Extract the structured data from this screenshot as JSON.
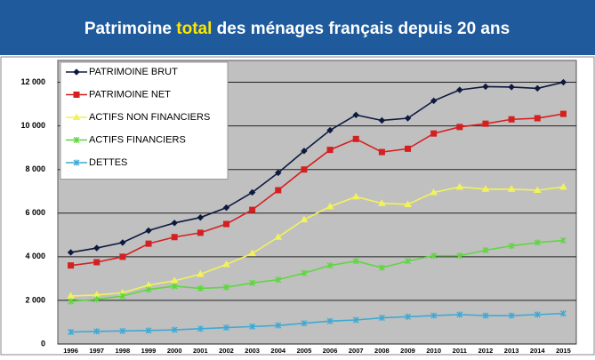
{
  "chart_data": {
    "type": "line",
    "title": [
      "Patrimoine ",
      "total",
      " des ménages français depuis 20 ans"
    ],
    "title_highlight_color": "#ffe600",
    "categories": [
      "1996",
      "1997",
      "1998",
      "1999",
      "2000",
      "2001",
      "2002",
      "2003",
      "2004",
      "2005",
      "2006",
      "2007",
      "2008",
      "2009",
      "2010",
      "2011",
      "2012",
      "2013",
      "2014",
      "2015"
    ],
    "series": [
      {
        "name": "PATRIMOINE BRUT",
        "color": "#0d1a40",
        "marker": "diamond",
        "values": [
          4200,
          4400,
          4650,
          5200,
          5550,
          5800,
          6250,
          6950,
          7850,
          8850,
          9800,
          10500,
          10250,
          10350,
          11150,
          11650,
          11800,
          11780,
          11720,
          12000
        ]
      },
      {
        "name": "PATRIMOINE NET",
        "color": "#d42020",
        "marker": "square",
        "values": [
          3600,
          3750,
          4000,
          4600,
          4900,
          5100,
          5500,
          6150,
          7050,
          8000,
          8900,
          9400,
          8800,
          8950,
          9650,
          9950,
          10100,
          10300,
          10350,
          10550
        ]
      },
      {
        "name": "ACTIFS NON FINANCIERS",
        "color": "#f2f25a",
        "marker": "triangle",
        "values": [
          2200,
          2250,
          2350,
          2700,
          2900,
          3200,
          3650,
          4150,
          4900,
          5700,
          6300,
          6750,
          6450,
          6400,
          6950,
          7200,
          7100,
          7100,
          7050,
          7200
        ]
      },
      {
        "name": "ACTIFS  FINANCIERS",
        "color": "#5fd640",
        "marker": "star",
        "values": [
          1950,
          2050,
          2200,
          2500,
          2650,
          2550,
          2600,
          2800,
          2950,
          3250,
          3600,
          3800,
          3500,
          3800,
          4050,
          4050,
          4300,
          4500,
          4650,
          4750
        ]
      },
      {
        "name": "DETTES",
        "color": "#3fa9d4",
        "marker": "star",
        "values": [
          550,
          580,
          600,
          620,
          650,
          700,
          750,
          800,
          850,
          950,
          1050,
          1100,
          1200,
          1250,
          1300,
          1350,
          1300,
          1300,
          1350,
          1400
        ]
      }
    ],
    "ylim": [
      0,
      13000
    ],
    "yticks": [
      0,
      {
        "value": 2000,
        "label": "2 000"
      },
      {
        "value": 4000,
        "label": "4 000"
      },
      {
        "value": 6000,
        "label": "6 000"
      },
      {
        "value": 8000,
        "label": "8 000"
      },
      {
        "value": 10000,
        "label": "10 000"
      },
      {
        "value": 12000,
        "label": "12 000"
      }
    ],
    "grid": true,
    "legend": "top-left",
    "plot_background": "#c0c0c0"
  }
}
